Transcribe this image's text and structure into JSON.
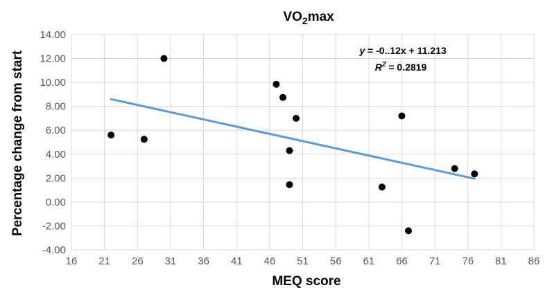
{
  "chart_data": {
    "type": "scatter",
    "title": "VO",
    "title_sub": "2",
    "title_rest": "max",
    "xlabel": "MEQ score",
    "ylabel": "Percentage change from start",
    "xlim": [
      16,
      86
    ],
    "ylim": [
      -4,
      14
    ],
    "x_ticks": [
      "16",
      "21",
      "26",
      "31",
      "36",
      "41",
      "46",
      "51",
      "56",
      "61",
      "66",
      "71",
      "76",
      "81",
      "86"
    ],
    "y_ticks": [
      "-4.00",
      "-2.00",
      "0.00",
      "2.00",
      "4.00",
      "6.00",
      "8.00",
      "10.00",
      "12.00",
      "14.00"
    ],
    "grid": "vertical and horizontal",
    "colors": {
      "points": "#000000",
      "trendline": "#5b9bd5",
      "grid": "#d9d9d9"
    },
    "points": [
      {
        "x": 22,
        "y": 5.6
      },
      {
        "x": 27,
        "y": 5.25
      },
      {
        "x": 30,
        "y": 12.0
      },
      {
        "x": 47,
        "y": 9.85
      },
      {
        "x": 48,
        "y": 8.75
      },
      {
        "x": 49,
        "y": 4.3
      },
      {
        "x": 49,
        "y": 1.45
      },
      {
        "x": 50,
        "y": 7.0
      },
      {
        "x": 63,
        "y": 1.25
      },
      {
        "x": 66,
        "y": 7.2
      },
      {
        "x": 67,
        "y": -2.4
      },
      {
        "x": 74,
        "y": 2.8
      },
      {
        "x": 77,
        "y": 2.35
      }
    ],
    "trendline": {
      "x_start": 22,
      "y_start": 8.6,
      "x_end": 77,
      "y_end": 1.95
    },
    "equation": {
      "y_var": "y",
      "rhs": " = -0..12x + 11.213",
      "r_var": "R",
      "r_sup": "2",
      "r_rhs": " = 0.2819"
    }
  }
}
